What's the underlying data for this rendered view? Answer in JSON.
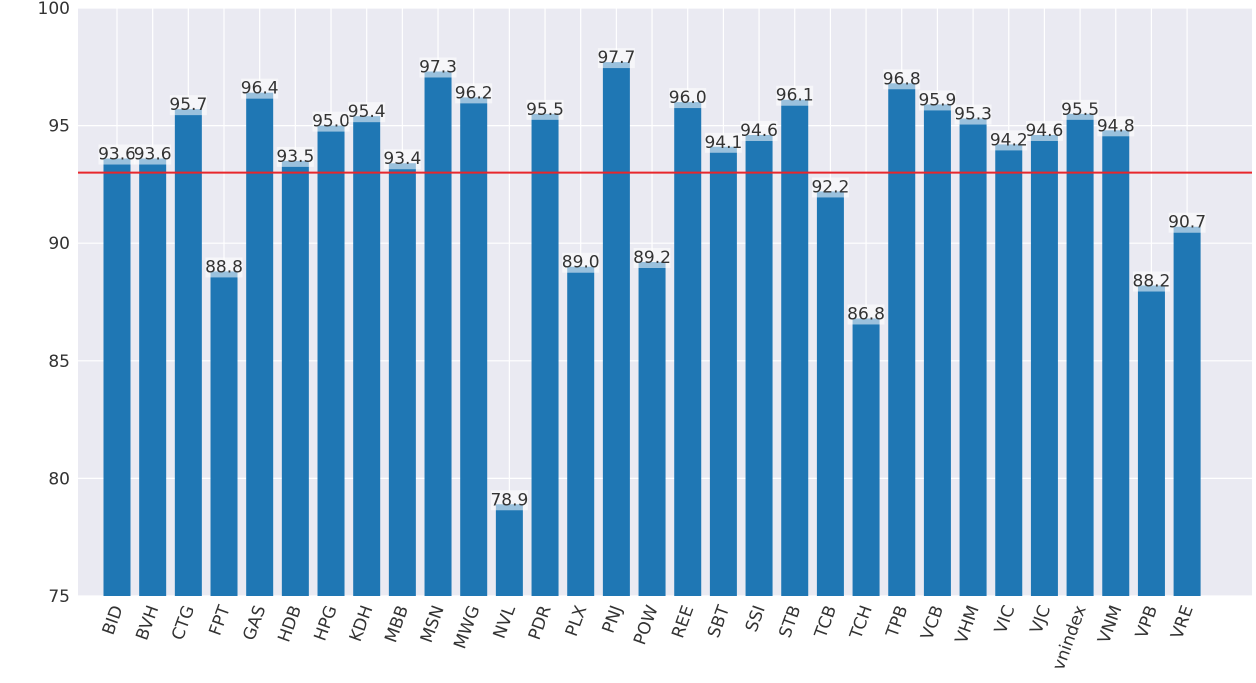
{
  "chart_data": {
    "type": "bar",
    "title": "",
    "xlabel": "",
    "ylabel": "",
    "ylim": [
      75,
      100
    ],
    "yticks": [
      "75",
      "80",
      "85",
      "90",
      "95",
      "100"
    ],
    "categories": [
      "BID",
      "BVH",
      "CTG",
      "FPT",
      "GAS",
      "HDB",
      "HPG",
      "KDH",
      "MBB",
      "MSN",
      "MWG",
      "NVL",
      "PDR",
      "PLX",
      "PNJ",
      "POW",
      "REE",
      "SBT",
      "SSI",
      "STB",
      "TCB",
      "TCH",
      "TPB",
      "VCB",
      "VHM",
      "VIC",
      "VJC",
      "vnindex",
      "VNM",
      "VPB",
      "VRE"
    ],
    "values": [
      93.6,
      93.6,
      95.7,
      88.8,
      96.4,
      93.5,
      95.0,
      95.4,
      93.4,
      97.3,
      96.2,
      78.9,
      95.5,
      89.0,
      97.7,
      89.2,
      96.0,
      94.1,
      94.6,
      96.1,
      92.2,
      86.8,
      96.8,
      95.9,
      95.3,
      94.2,
      94.6,
      95.5,
      94.8,
      88.2,
      90.7
    ],
    "labels": [
      "93.6",
      "93.6",
      "95.7",
      "88.8",
      "96.4",
      "93.5",
      "95.0",
      "95.4",
      "93.4",
      "97.3",
      "96.2",
      "78.9",
      "95.5",
      "89.0",
      "97.7",
      "89.2",
      "96.0",
      "94.1",
      "94.6",
      "96.1",
      "92.2",
      "86.8",
      "96.8",
      "95.9",
      "95.3",
      "94.2",
      "94.6",
      "95.5",
      "94.8",
      "88.2",
      "90.7"
    ],
    "reference_line": 93.0,
    "grid": true,
    "colors": {
      "bar": "#1f77b4",
      "label_box": "#ffffff",
      "reference": "#e8262b",
      "plot_bg": "#eaeaf2",
      "grid": "#ffffff"
    }
  }
}
